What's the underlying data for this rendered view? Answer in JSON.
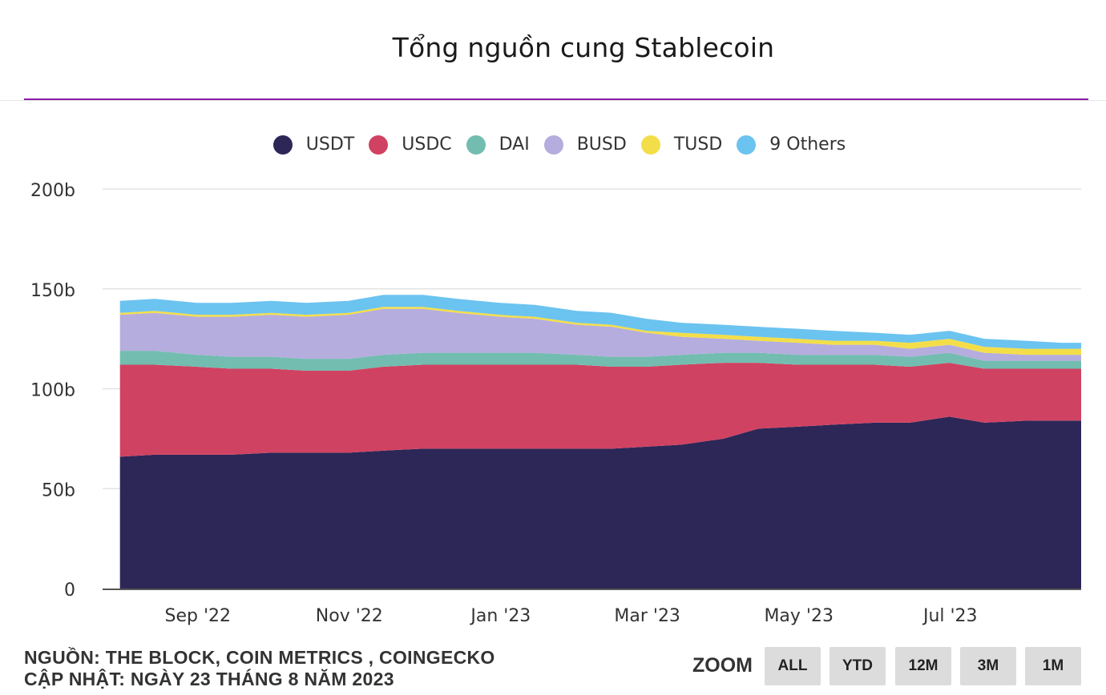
{
  "title": "Tổng nguồn cung Stablecoin",
  "footer": {
    "source": "NGUỒN: THE BLOCK, COIN METRICS , COINGECKO",
    "updated": "CẬP NHẬT: NGÀY 23 THÁNG 8 NĂM 2023"
  },
  "zoom": {
    "label": "ZOOM",
    "buttons": [
      "ALL",
      "YTD",
      "12M",
      "3M",
      "1M"
    ]
  },
  "chart_data": {
    "type": "area",
    "stacked": true,
    "title": "Tổng nguồn cung Stablecoin",
    "xlabel": "",
    "ylabel": "",
    "x_ticks": [
      "Sep '22",
      "Nov '22",
      "Jan '23",
      "Mar '23",
      "May '23",
      "Jul '23"
    ],
    "y_ticks": [
      "0",
      "50b",
      "100b",
      "150b",
      "200b"
    ],
    "ylim": [
      0,
      200
    ],
    "y_unit": "b",
    "grid": true,
    "legend": "top-center",
    "x": [
      "2022-08-01",
      "2022-08-15",
      "2022-09-01",
      "2022-09-15",
      "2022-10-01",
      "2022-10-15",
      "2022-11-01",
      "2022-11-15",
      "2022-12-01",
      "2022-12-15",
      "2023-01-01",
      "2023-01-15",
      "2023-02-01",
      "2023-02-15",
      "2023-03-01",
      "2023-03-15",
      "2023-04-01",
      "2023-04-15",
      "2023-05-01",
      "2023-05-15",
      "2023-06-01",
      "2023-06-15",
      "2023-07-01",
      "2023-07-15",
      "2023-08-01",
      "2023-08-15",
      "2023-08-23"
    ],
    "series": [
      {
        "name": "USDT",
        "color": "#2c2757",
        "values": [
          66,
          67,
          67,
          67,
          68,
          68,
          68,
          69,
          70,
          70,
          70,
          70,
          70,
          70,
          71,
          72,
          75,
          80,
          81,
          82,
          83,
          83,
          86,
          83,
          84,
          84,
          84
        ]
      },
      {
        "name": "USDC",
        "color": "#d04262",
        "values": [
          46,
          45,
          44,
          43,
          42,
          41,
          41,
          42,
          42,
          42,
          42,
          42,
          42,
          41,
          40,
          40,
          38,
          33,
          31,
          30,
          29,
          28,
          27,
          27,
          26,
          26,
          26
        ]
      },
      {
        "name": "DAI",
        "color": "#72bdb0",
        "values": [
          7,
          7,
          6,
          6,
          6,
          6,
          6,
          6,
          6,
          6,
          6,
          6,
          5,
          5,
          5,
          5,
          5,
          5,
          5,
          5,
          5,
          5,
          5,
          4,
          4,
          4,
          4
        ]
      },
      {
        "name": "BUSD",
        "color": "#b5addd",
        "values": [
          18,
          19,
          19,
          20,
          21,
          21,
          22,
          23,
          22,
          20,
          18,
          17,
          15,
          15,
          12,
          9,
          7,
          6,
          6,
          5,
          5,
          4,
          4,
          4,
          3,
          3,
          3
        ]
      },
      {
        "name": "TUSD",
        "color": "#f3de4a",
        "values": [
          1,
          1,
          1,
          1,
          1,
          1,
          1,
          1,
          1,
          1,
          1,
          1,
          1,
          1,
          1,
          2,
          2,
          2,
          2,
          2,
          2,
          3,
          3,
          3,
          3,
          3,
          3
        ]
      },
      {
        "name": "9 Others",
        "color": "#6bc3f0",
        "values": [
          6,
          6,
          6,
          6,
          6,
          6,
          6,
          6,
          6,
          6,
          6,
          6,
          6,
          6,
          6,
          5,
          5,
          5,
          5,
          5,
          4,
          4,
          4,
          4,
          4,
          3,
          3
        ]
      }
    ]
  }
}
